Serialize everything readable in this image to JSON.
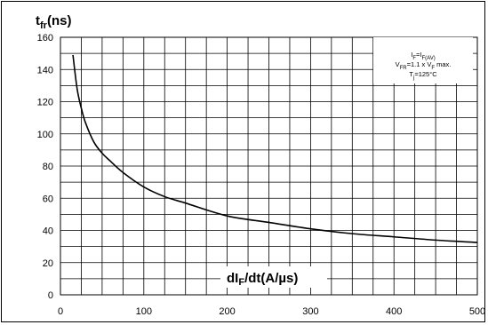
{
  "chart_data": {
    "type": "line",
    "ylabel": {
      "main": "t",
      "sub": "fr",
      "unit": "(ns)"
    },
    "xlabel": {
      "main": "dI",
      "sub": "F",
      "unit": "/dt(A/µs)"
    },
    "xlim": [
      0,
      500
    ],
    "ylim": [
      0,
      160
    ],
    "xticks": [
      0,
      100,
      200,
      300,
      400,
      500
    ],
    "yticks": [
      0,
      20,
      40,
      60,
      80,
      100,
      120,
      140,
      160
    ],
    "grid": true,
    "annotation": [
      {
        "pre": "I",
        "sub1": "F",
        "mid": "=I",
        "sub2": "F(AV)",
        "post": ""
      },
      {
        "pre": "V",
        "sub1": "FR",
        "mid": "=1.1 x V",
        "sub2": "F",
        "post": " max."
      },
      {
        "pre": "T",
        "sub1": "j",
        "mid": "=125°C",
        "sub2": "",
        "post": ""
      }
    ],
    "series": [
      {
        "x": [
          15,
          20,
          25,
          30,
          40,
          50,
          60,
          75,
          100,
          125,
          150,
          200,
          250,
          300,
          350,
          400,
          450,
          500
        ],
        "y": [
          149,
          128,
          116,
          107,
          95,
          88,
          83,
          76,
          67,
          61,
          57,
          49,
          45,
          41,
          38,
          36,
          34,
          32.5
        ]
      }
    ]
  }
}
